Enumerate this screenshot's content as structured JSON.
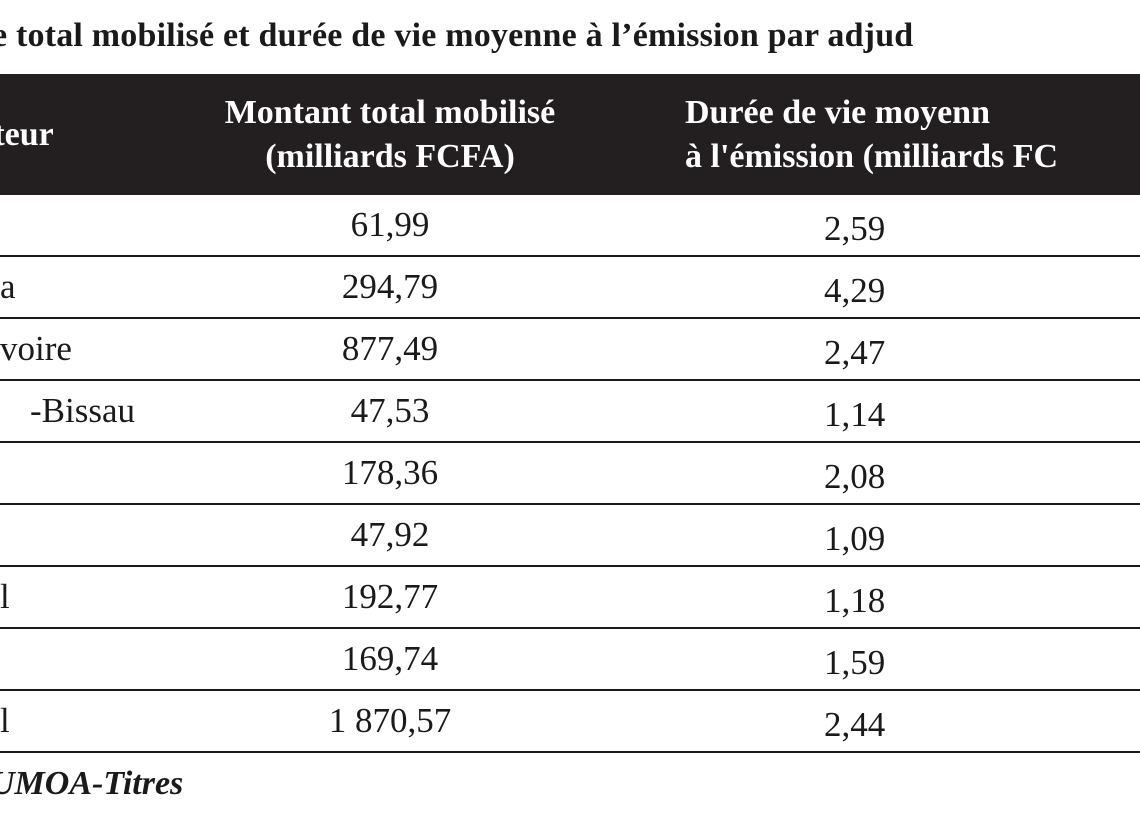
{
  "title": "e total mobilisé et durée de vie moyenne à l’émission par adjud",
  "table": {
    "headers": {
      "col1": "tteur",
      "col2_line1": "Montant total mobilisé",
      "col2_line2": "(milliards FCFA)",
      "col3_line1": "Durée de vie moyenn",
      "col3_line2": "à l'émission (milliards FC"
    },
    "rows": [
      {
        "country": "",
        "amount": "61,99",
        "duration": "2,59"
      },
      {
        "country": "a",
        "amount": "294,79",
        "duration": "4,29"
      },
      {
        "country": "voire",
        "amount": "877,49",
        "duration": "2,47"
      },
      {
        "country": "-Bissau",
        "amount": "47,53",
        "duration": "1,14"
      },
      {
        "country": "",
        "amount": "178,36",
        "duration": "2,08"
      },
      {
        "country": "",
        "amount": "47,92",
        "duration": "1,09"
      },
      {
        "country": "l",
        "amount": "192,77",
        "duration": "1,18"
      },
      {
        "country": "",
        "amount": "169,74",
        "duration": "1,59"
      },
      {
        "country": "l",
        "amount": "1 870,57",
        "duration": "2,44"
      }
    ]
  },
  "source": "UMOA-Titres"
}
